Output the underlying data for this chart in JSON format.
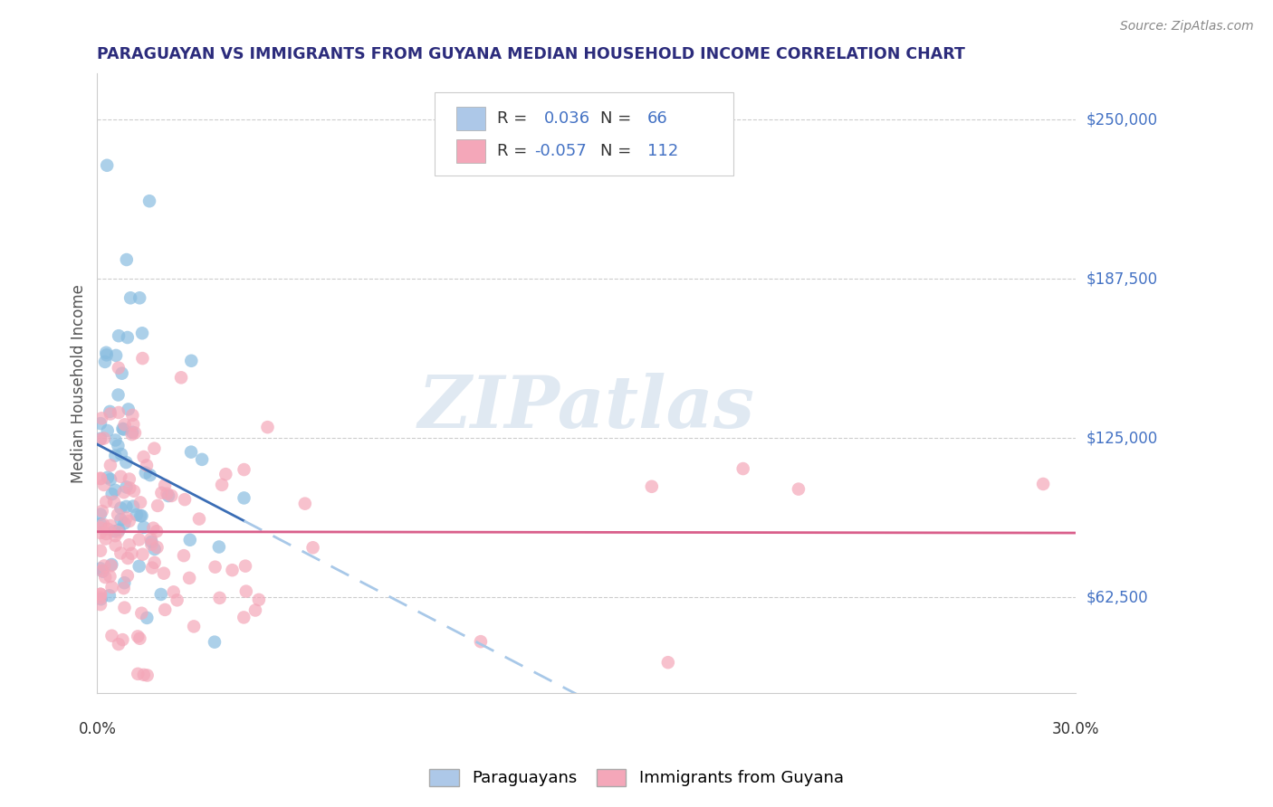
{
  "title": "PARAGUAYAN VS IMMIGRANTS FROM GUYANA MEDIAN HOUSEHOLD INCOME CORRELATION CHART",
  "source": "Source: ZipAtlas.com",
  "ylabel": "Median Household Income",
  "yticks": [
    62500,
    125000,
    187500,
    250000
  ],
  "ytick_labels": [
    "$62,500",
    "$125,000",
    "$187,500",
    "$250,000"
  ],
  "xlim": [
    0.0,
    0.3
  ],
  "ylim": [
    25000,
    268000
  ],
  "legend_blue_r": "0.036",
  "legend_blue_n": "66",
  "legend_pink_r": "-0.057",
  "legend_pink_n": "112",
  "blue_scatter_color": "#89bde0",
  "pink_scatter_color": "#f4a7b9",
  "blue_line_solid_color": "#3a6db5",
  "blue_line_dash_color": "#a8c8e8",
  "pink_line_color": "#d95f8b",
  "watermark": "ZIPatlas",
  "bg_color": "#ffffff",
  "grid_color": "#cccccc",
  "title_color": "#2c2c7c",
  "ytick_color": "#4472c4",
  "xtick_color": "#333333",
  "source_color": "#888888",
  "ylabel_color": "#555555"
}
